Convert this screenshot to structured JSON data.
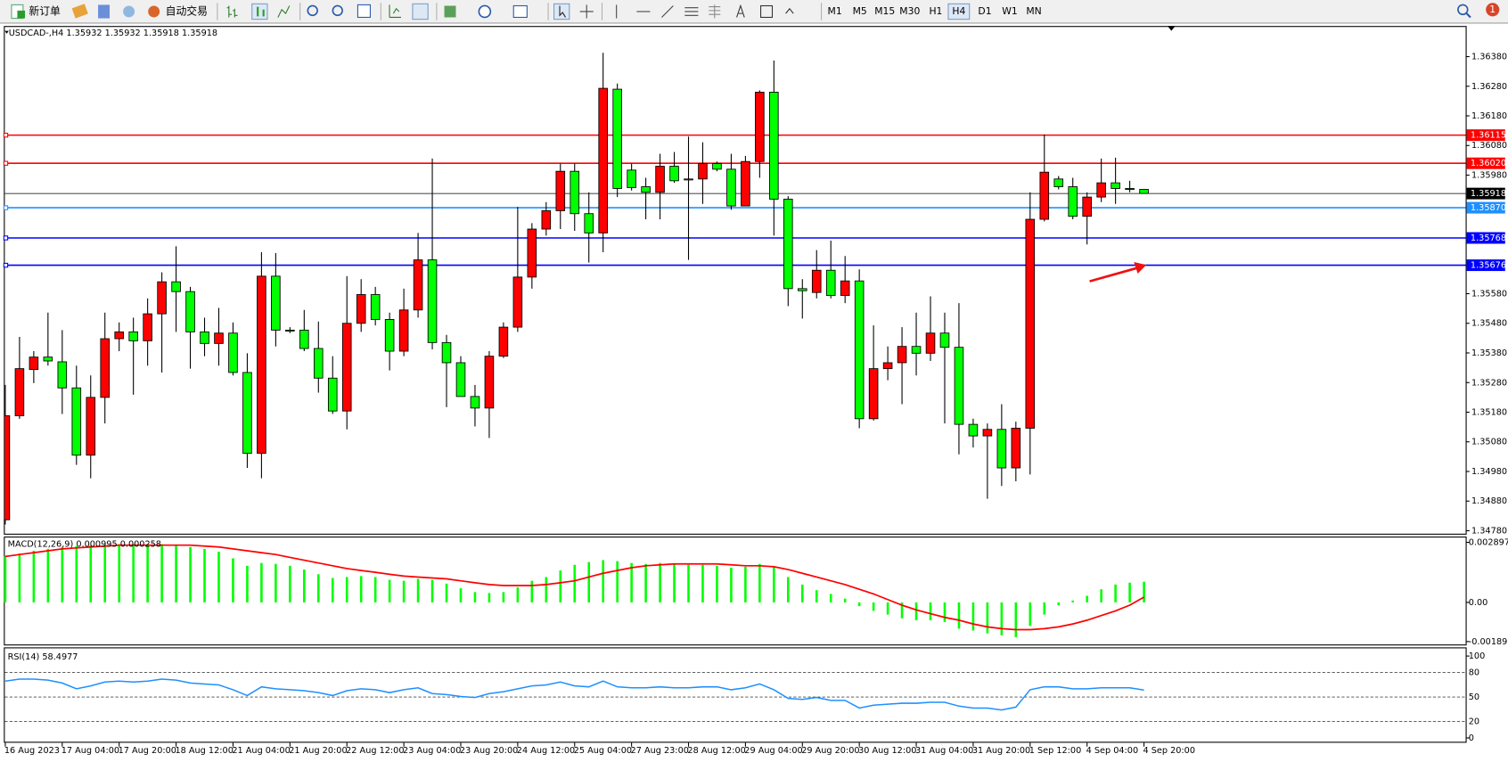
{
  "toolbar": {
    "buttons": [
      "新订单",
      "自动交易"
    ],
    "timeframes": [
      {
        "label": "M1",
        "active": false
      },
      {
        "label": "M5",
        "active": false
      },
      {
        "label": "M15",
        "active": false
      },
      {
        "label": "M30",
        "active": false
      },
      {
        "label": "H1",
        "active": false
      },
      {
        "label": "H4",
        "active": true
      },
      {
        "label": "D1",
        "active": false
      },
      {
        "label": "W1",
        "active": false
      },
      {
        "label": "MN",
        "active": false
      }
    ],
    "notifications": 1
  },
  "chart_data": {
    "type": "candlestick",
    "title": "USDCAD-,H4",
    "up_color": "#ff0000",
    "down_color": "#00ff00",
    "categories": [
      "16 Aug 2023",
      null,
      null,
      null,
      "17 Aug 04:00",
      null,
      null,
      null,
      "17 Aug 20:00",
      null,
      null,
      null,
      "18 Aug 12:00",
      null,
      null,
      null,
      "21 Aug 04:00",
      null,
      null,
      null,
      "21 Aug 20:00",
      null,
      null,
      null,
      "22 Aug 12:00",
      null,
      null,
      null,
      "23 Aug 04:00",
      null,
      null,
      null,
      "23 Aug 20:00",
      null,
      null,
      null,
      "24 Aug 12:00",
      null,
      null,
      null,
      "25 Aug 04:00",
      null,
      null,
      null,
      "27 Aug 23:00",
      null,
      null,
      null,
      "28 Aug 12:00",
      null,
      null,
      null,
      "29 Aug 04:00",
      null,
      null,
      null,
      "29 Aug 20:00",
      null,
      null,
      null,
      "30 Aug 12:00",
      null,
      null,
      null,
      "31 Aug 04:00",
      null,
      null,
      null,
      "31 Aug 20:00",
      null,
      null,
      null,
      "1 Sep 12:00",
      null,
      null,
      null,
      "4 Sep 04:00",
      null,
      null,
      null,
      "4 Sep 20:00"
    ],
    "open": [
      1.34817,
      1.35168,
      1.35324,
      1.35366,
      1.3535,
      1.35262,
      1.35035,
      1.3523,
      1.35428,
      1.35451,
      1.35421,
      1.35512,
      1.3562,
      1.35587,
      1.35451,
      1.35412,
      1.35447,
      1.35314,
      1.35041,
      1.35639,
      1.35457,
      1.35457,
      1.35395,
      1.35295,
      1.35184,
      1.3548,
      1.35577,
      1.35493,
      1.35386,
      1.35525,
      1.35694,
      1.35415,
      1.35347,
      1.35233,
      1.35194,
      1.35369,
      1.35467,
      1.35636,
      1.35798,
      1.3586,
      1.35993,
      1.3585,
      1.35785,
      1.3627,
      1.35997,
      1.35941,
      1.35922,
      1.3601,
      1.35967,
      1.35967,
      1.36019,
      1.36,
      1.35876,
      1.36026,
      1.3626,
      1.35899,
      1.35597,
      1.35584,
      1.35659,
      1.35574,
      1.35623,
      1.35158,
      1.35327,
      1.35347,
      1.35402,
      1.35379,
      1.35447,
      1.35399,
      1.35139,
      1.351,
      1.35122,
      1.34992,
      1.35126,
      1.35831,
      1.35967,
      1.35941,
      1.35841,
      1.35906,
      1.35954,
      1.35935,
      1.35932
    ],
    "high": [
      1.35272,
      1.35434,
      1.35386,
      1.35516,
      1.35457,
      1.35337,
      1.35304,
      1.35516,
      1.35483,
      1.35499,
      1.35564,
      1.35652,
      1.3574,
      1.35603,
      1.35499,
      1.35532,
      1.35483,
      1.35379,
      1.3572,
      1.35717,
      1.35467,
      1.35525,
      1.35486,
      1.35369,
      1.35639,
      1.35629,
      1.35603,
      1.35516,
      1.35597,
      1.35785,
      1.36036,
      1.35441,
      1.35369,
      1.35272,
      1.35386,
      1.35483,
      1.35873,
      1.35818,
      1.35889,
      1.36019,
      1.36019,
      1.35922,
      1.36393,
      1.36289,
      1.36019,
      1.35971,
      1.36052,
      1.36058,
      1.3611,
      1.36091,
      1.36026,
      1.36052,
      1.36045,
      1.36266,
      1.36367,
      1.35909,
      1.35629,
      1.35727,
      1.35759,
      1.35707,
      1.35662,
      1.35473,
      1.35402,
      1.35467,
      1.35516,
      1.35571,
      1.35516,
      1.35548,
      1.35158,
      1.35142,
      1.35207,
      1.35148,
      1.35922,
      1.36117,
      1.35977,
      1.35971,
      1.35922,
      1.36036,
      1.36039,
      1.35961,
      1.35932
    ],
    "low": [
      1.34801,
      1.35158,
      1.35278,
      1.35337,
      1.35174,
      1.35002,
      1.34957,
      1.35142,
      1.35386,
      1.35239,
      1.35337,
      1.35314,
      1.35451,
      1.35327,
      1.35369,
      1.35337,
      1.35304,
      1.34992,
      1.34957,
      1.35402,
      1.35447,
      1.35386,
      1.35246,
      1.35174,
      1.35122,
      1.35451,
      1.35473,
      1.35321,
      1.35369,
      1.35499,
      1.35392,
      1.35197,
      1.35233,
      1.35132,
      1.35093,
      1.35363,
      1.35451,
      1.35597,
      1.35776,
      1.35798,
      1.35792,
      1.35685,
      1.3572,
      1.35906,
      1.35928,
      1.35831,
      1.35831,
      1.35954,
      1.35694,
      1.35883,
      1.35993,
      1.35863,
      1.35876,
      1.35971,
      1.35776,
      1.35538,
      1.35496,
      1.35564,
      1.35564,
      1.35548,
      1.35126,
      1.35152,
      1.35288,
      1.35207,
      1.35304,
      1.35353,
      1.35142,
      1.35038,
      1.35061,
      1.34888,
      1.34931,
      1.34947,
      1.3497,
      1.35824,
      1.35932,
      1.35831,
      1.35746,
      1.35889,
      1.35883,
      1.35922,
      1.35918
    ],
    "close": [
      1.35168,
      1.35327,
      1.35366,
      1.35353,
      1.35262,
      1.35035,
      1.3523,
      1.35428,
      1.35451,
      1.35421,
      1.35512,
      1.3562,
      1.35587,
      1.35451,
      1.35412,
      1.35447,
      1.35314,
      1.35041,
      1.35639,
      1.35457,
      1.35454,
      1.35395,
      1.35295,
      1.35184,
      1.3548,
      1.35577,
      1.35493,
      1.35386,
      1.35525,
      1.35694,
      1.35415,
      1.35347,
      1.35233,
      1.35194,
      1.35369,
      1.35467,
      1.35636,
      1.35798,
      1.3586,
      1.35993,
      1.3585,
      1.35785,
      1.36273,
      1.35935,
      1.35938,
      1.35922,
      1.3601,
      1.35961,
      1.35964,
      1.36019,
      1.36,
      1.35876,
      1.36026,
      1.3626,
      1.35899,
      1.35597,
      1.3559,
      1.35659,
      1.35574,
      1.35623,
      1.35158,
      1.35327,
      1.35347,
      1.35402,
      1.35379,
      1.35447,
      1.35399,
      1.35139,
      1.351,
      1.35122,
      1.34992,
      1.35126,
      1.35831,
      1.3599,
      1.35941,
      1.35841,
      1.35906,
      1.35954,
      1.35935,
      1.35932,
      1.35918
    ],
    "ylim": [
      1.3477,
      1.3648
    ],
    "yticks": [
      {
        "value": 1.3638,
        "label": "1.36380"
      },
      {
        "value": 1.3628,
        "label": "1.36280"
      },
      {
        "value": 1.3618,
        "label": "1.36180"
      },
      {
        "value": 1.3608,
        "label": "1.36080"
      },
      {
        "value": 1.3598,
        "label": "1.35980"
      },
      {
        "value": 1.3558,
        "label": "1.35580"
      },
      {
        "value": 1.3548,
        "label": "1.35480"
      },
      {
        "value": 1.3538,
        "label": "1.35380"
      },
      {
        "value": 1.3528,
        "label": "1.35280"
      },
      {
        "value": 1.3518,
        "label": "1.35180"
      },
      {
        "value": 1.3508,
        "label": "1.35080"
      },
      {
        "value": 1.3498,
        "label": "1.34980"
      },
      {
        "value": 1.3488,
        "label": "1.34880"
      },
      {
        "value": 1.3478,
        "label": "1.34780"
      }
    ],
    "hlines": [
      {
        "value": 1.36115,
        "label": "1.36115",
        "color": "#ff0000"
      },
      {
        "value": 1.3602,
        "label": "1.36020",
        "color": "#ff0000"
      },
      {
        "value": 1.3587,
        "label": "1.35870",
        "color": "#1e90ff"
      },
      {
        "value": 1.35768,
        "label": "1.35768",
        "color": "#0000ff"
      },
      {
        "value": 1.35676,
        "label": "1.35676",
        "color": "#0000ff"
      }
    ],
    "macd": {
      "label": "MACD(12,26,9)",
      "histogram_color": "#00ff00",
      "signal_color": "#ff0000",
      "ylim": [
        -0.001891,
        0.002897
      ],
      "yticks": [
        0.002897,
        {
          "value": 0,
          "label": "0.00"
        },
        -0.001891
      ],
      "histogram": [
        0.00222,
        0.002356,
        0.002492,
        0.002582,
        0.002673,
        0.002718,
        0.002763,
        0.002763,
        0.002809,
        0.002809,
        0.002809,
        0.002809,
        0.002763,
        0.002673,
        0.002582,
        0.002446,
        0.002129,
        0.001767,
        0.001903,
        0.001857,
        0.001767,
        0.001586,
        0.001359,
        0.001178,
        0.001223,
        0.001268,
        0.001223,
        0.001087,
        0.001042,
        0.001133,
        0.001087,
        0.000906,
        0.00068,
        0.000498,
        0.000453,
        0.000498,
        0.000725,
        0.001042,
        0.001223,
        0.00154,
        0.001812,
        0.001948,
        0.002039,
        0.001993,
        0.001903,
        0.001857,
        0.001903,
        0.001857,
        0.001812,
        0.001812,
        0.001767,
        0.001676,
        0.001721,
        0.001857,
        0.001721,
        0.001223,
        0.000861,
        0.000589,
        0.000408,
        0.000181,
        -0.000181,
        -0.000408,
        -0.000589,
        -0.00077,
        -0.000861,
        -0.000861,
        -0.000951,
        -0.001268,
        -0.001359,
        -0.001495,
        -0.001586,
        -0.001676,
        -0.001133,
        -0.000589,
        -0.000136,
        9.1e-05,
        0.000317,
        0.000634,
        0.000861,
        0.000951,
        0.000995
      ],
      "signal": [
        0.00222,
        0.00231,
        0.002401,
        0.002492,
        0.002582,
        0.002627,
        0.002673,
        0.002718,
        0.002763,
        0.002763,
        0.002763,
        0.002763,
        0.002763,
        0.002763,
        0.002718,
        0.002673,
        0.002582,
        0.002492,
        0.002401,
        0.00231,
        0.002174,
        0.002039,
        0.001903,
        0.001767,
        0.001631,
        0.00154,
        0.00145,
        0.001359,
        0.001268,
        0.001223,
        0.001178,
        0.001133,
        0.001042,
        0.000951,
        0.000861,
        0.000815,
        0.000815,
        0.000815,
        0.000861,
        0.000951,
        0.001042,
        0.001223,
        0.001404,
        0.00154,
        0.001676,
        0.001767,
        0.001812,
        0.001857,
        0.001857,
        0.001857,
        0.001857,
        0.001812,
        0.001767,
        0.001767,
        0.001721,
        0.001586,
        0.001404,
        0.001223,
        0.001042,
        0.000861,
        0.000634,
        0.000408,
        0.000136,
        -0.000136,
        -0.000362,
        -0.000544,
        -0.000725,
        -0.000861,
        -0.001042,
        -0.001178,
        -0.001268,
        -0.001314,
        -0.001314,
        -0.001268,
        -0.001178,
        -0.001042,
        -0.000861,
        -0.000634,
        -0.000408,
        -0.000136,
        0.000258
      ]
    },
    "rsi": {
      "label": "RSI(14)",
      "color": "#1e90ff",
      "ylim": [
        0,
        100
      ],
      "yticks": [
        100,
        80,
        50,
        20,
        0
      ],
      "values": [
        69.4,
        71.8,
        71.8,
        70.6,
        67.1,
        60.0,
        63.5,
        68.2,
        69.4,
        68.2,
        69.4,
        71.8,
        70.6,
        67.1,
        65.9,
        64.7,
        58.8,
        51.8,
        62.4,
        60.0,
        58.8,
        57.6,
        55.3,
        51.8,
        57.6,
        60.0,
        58.8,
        55.3,
        58.8,
        61.2,
        54.1,
        52.9,
        50.6,
        49.4,
        54.1,
        56.5,
        60.0,
        63.5,
        64.7,
        68.2,
        63.5,
        62.4,
        69.4,
        62.4,
        61.2,
        61.2,
        62.4,
        61.2,
        61.2,
        62.4,
        62.4,
        58.8,
        61.2,
        65.9,
        58.8,
        48.2,
        47.1,
        49.4,
        45.9,
        45.9,
        36.5,
        40.0,
        41.2,
        42.4,
        42.4,
        43.5,
        43.5,
        38.8,
        36.5,
        36.5,
        34.1,
        37.6,
        58.8,
        62.4,
        62.4,
        60.0,
        60.0,
        61.2,
        61.2,
        61.2,
        58.4977
      ]
    }
  }
}
